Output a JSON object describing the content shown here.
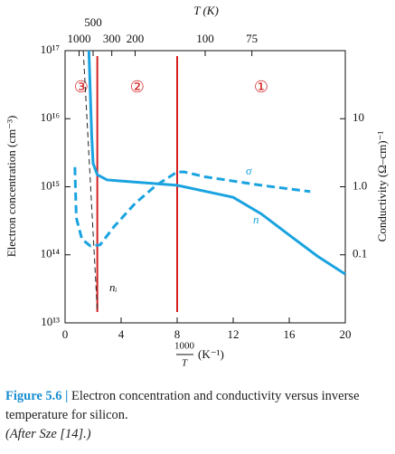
{
  "chart_data": {
    "type": "line",
    "title": "T (K)",
    "xlabel": {
      "numerator": "1000",
      "denominator": "T",
      "unit": "(K⁻¹)"
    },
    "ylabel": "Electron concentration (cm⁻³)",
    "y2label": "Conductivity (Ω–cm)⁻¹",
    "xlim": [
      0,
      20
    ],
    "xticks": [
      0,
      4,
      8,
      12,
      16,
      20
    ],
    "x2ticks": [
      1000,
      500,
      300,
      200,
      100,
      75
    ],
    "ylim": [
      10000000000000.0,
      1e+17
    ],
    "yticks": [
      {
        "value": 10000000000000.0,
        "label": "10¹³"
      },
      {
        "value": 100000000000000.0,
        "label": "10¹⁴"
      },
      {
        "value": 1000000000000000.0,
        "label": "10¹⁵"
      },
      {
        "value": 1e+16,
        "label": "10¹⁶"
      },
      {
        "value": 1e+17,
        "label": "10¹⁷"
      }
    ],
    "y2lim": [
      0.01,
      100
    ],
    "y2ticks": [
      0.1,
      {
        "value": 1,
        "label": "1.0"
      },
      10
    ],
    "log_scale": true,
    "region_boundaries": [
      2.3,
      8
    ],
    "region_color": "#d42020",
    "regions": [
      "③",
      "②",
      "①"
    ],
    "series": [
      {
        "name": "n",
        "color": "#1aa3e0",
        "style": "solid",
        "x": [
          1.7,
          1.9,
          2.0,
          2.3,
          3.0,
          8,
          12,
          14,
          16,
          18,
          20
        ],
        "values": [
          1e+17,
          5600000000000000.0,
          2200000000000000.0,
          1500000000000000.0,
          1260000000000000.0,
          1050000000000000.0,
          700000000000000.0,
          400000000000000.0,
          195000000000000.0,
          96000000000000.0,
          52000000000000.0
        ]
      },
      {
        "name": "σ",
        "color": "#1aa3e0",
        "style": "dashed",
        "axis": "y2",
        "x": [
          0.7,
          0.8,
          1.2,
          1.8,
          2.5,
          3.5,
          5,
          6.5,
          8,
          8.5,
          10,
          14,
          17.5
        ],
        "values": [
          1.94,
          0.35,
          0.17,
          0.135,
          0.14,
          0.26,
          0.57,
          1.05,
          1.65,
          1.65,
          1.4,
          1.05,
          0.85
        ]
      },
      {
        "name": "nᵢ",
        "color": "#222222",
        "style": "dashed",
        "x": [
          1.3,
          2.3
        ],
        "values": [
          1e+17,
          15000000000000.0
        ]
      }
    ]
  },
  "caption": {
    "label": "Figure 5.6 |",
    "text": " Electron concentration and conductivity versus inverse temperature for silicon.",
    "source": "(After Sze [14].)"
  }
}
